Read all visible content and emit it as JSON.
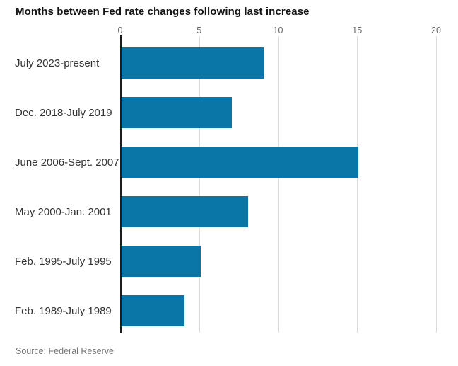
{
  "chart_data": {
    "type": "bar",
    "orientation": "horizontal",
    "title": "Months between Fed rate changes following last increase",
    "categories": [
      "July 2023-present",
      "Dec. 2018-July 2019",
      "June 2006-Sept. 2007",
      "May 2000-Jan. 2001",
      "Feb. 1995-July 1995",
      "Feb. 1989-July 1989"
    ],
    "values": [
      9,
      7,
      15,
      8,
      5,
      4
    ],
    "value_unit": "months",
    "x_ticks": [
      0,
      5,
      10,
      15,
      20
    ],
    "xlim": [
      0,
      20
    ],
    "xlabel": "",
    "ylabel": "",
    "grid": true,
    "legend": "none",
    "axis_position": "top",
    "bar_color": "#0a76a8",
    "source": "Source: Federal Reserve"
  },
  "colors": {
    "bar": "#0a76a8",
    "axis_line": "#1c1c1c",
    "gridline": "#dcdcdc",
    "title_text": "#141414",
    "category_text": "#333333",
    "tick_text": "#666666",
    "source_text": "#767676",
    "background": "#ffffff"
  }
}
